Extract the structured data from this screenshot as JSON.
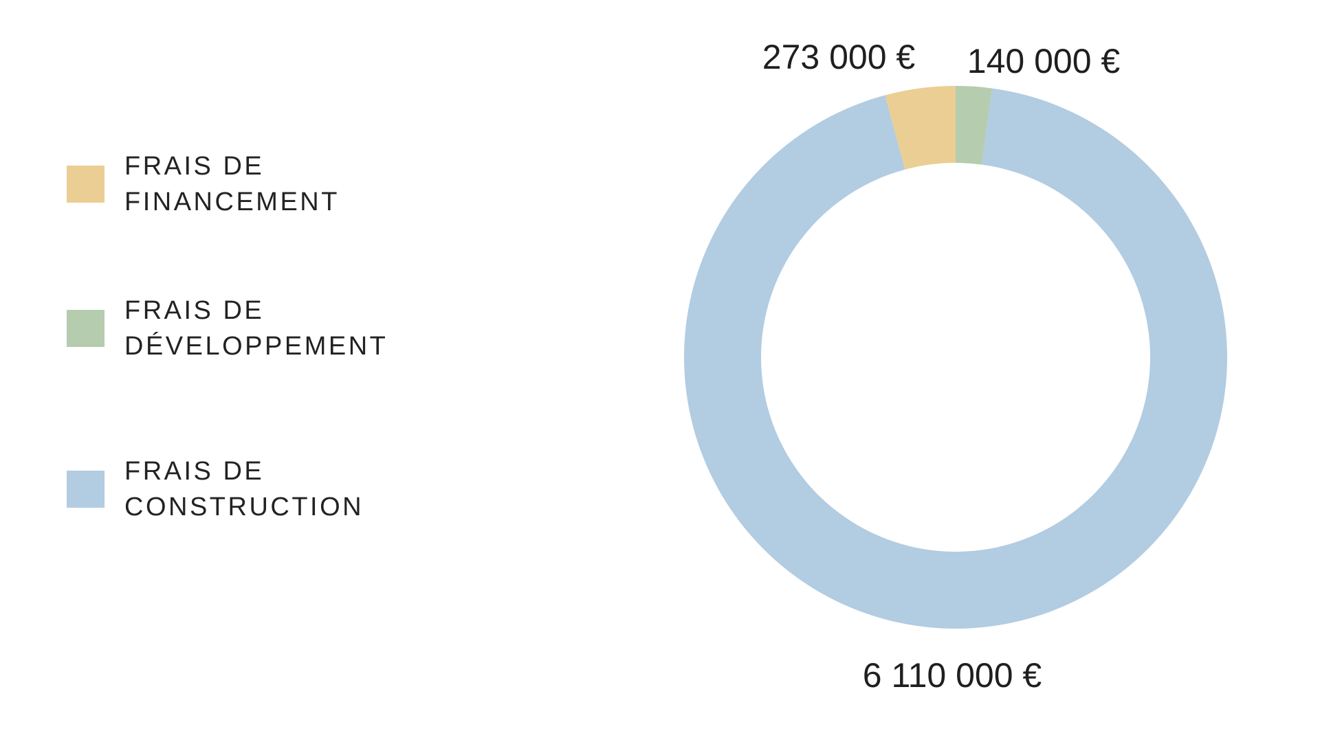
{
  "chart_data": {
    "type": "pie",
    "variant": "donut",
    "title": "",
    "categories": [
      "FRAIS DE FINANCEMENT",
      "FRAIS DE DÉVELOPPEMENT",
      "FRAIS DE CONSTRUCTION"
    ],
    "values": [
      273000,
      140000,
      6110000
    ],
    "value_labels": [
      "273 000 €",
      "140 000 €",
      "6 110 000 €"
    ],
    "colors": [
      "#EBCE94",
      "#B5CCAF",
      "#B2CCE2"
    ],
    "legend": {
      "placement": "left",
      "items": [
        {
          "line1": "FRAIS DE",
          "line2": "FINANCEMENT",
          "color": "#EBCE94"
        },
        {
          "line1": "FRAIS DE",
          "line2": "DÉVELOPPEMENT",
          "color": "#B5CCAF"
        },
        {
          "line1": "FRAIS DE",
          "line2": "CONSTRUCTION",
          "color": "#B2CCE2"
        }
      ]
    }
  }
}
